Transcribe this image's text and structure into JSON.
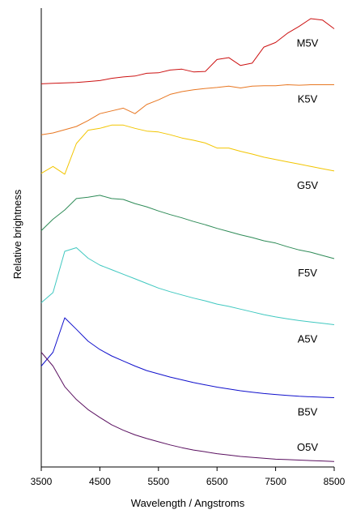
{
  "chart_data": {
    "type": "line",
    "title": "",
    "xlabel": "Wavelength / Angstroms",
    "ylabel": "Relative brightness",
    "xlim": [
      3500,
      8500
    ],
    "xticks": [
      3500,
      4500,
      5500,
      6500,
      7500,
      8500
    ],
    "ylim": [
      0,
      100
    ],
    "grid": false,
    "legend": "none",
    "series": [
      {
        "name": "M5V",
        "color": "#cc1111",
        "x": [
          3500,
          3700,
          3900,
          4100,
          4300,
          4500,
          4700,
          4900,
          5100,
          5300,
          5500,
          5700,
          5900,
          6100,
          6300,
          6500,
          6700,
          6900,
          7100,
          7300,
          7500,
          7700,
          7900,
          8100,
          8300,
          8500
        ],
        "y": [
          83.5,
          83.6,
          83.7,
          83.8,
          84.0,
          84.2,
          84.7,
          85.0,
          85.2,
          85.8,
          85.9,
          86.5,
          86.7,
          86.1,
          86.2,
          88.8,
          89.2,
          87.5,
          88.0,
          91.5,
          92.5,
          94.5,
          96.0,
          97.7,
          97.4,
          95.5
        ]
      },
      {
        "name": "K5V",
        "color": "#e87722",
        "x": [
          3500,
          3700,
          3900,
          4100,
          4300,
          4500,
          4700,
          4900,
          5100,
          5300,
          5500,
          5700,
          5900,
          6100,
          6300,
          6500,
          6700,
          6900,
          7100,
          7300,
          7500,
          7700,
          7900,
          8100,
          8300,
          8500
        ],
        "y": [
          72.4,
          72.8,
          73.5,
          74.2,
          75.5,
          77.0,
          77.6,
          78.2,
          77.0,
          79.0,
          80.0,
          81.2,
          81.8,
          82.2,
          82.5,
          82.7,
          83.0,
          82.6,
          83.0,
          83.1,
          83.1,
          83.3,
          83.2,
          83.3,
          83.3,
          83.3
        ]
      },
      {
        "name": "G5V",
        "color": "#f2c500",
        "x": [
          3500,
          3700,
          3900,
          4100,
          4300,
          4500,
          4700,
          4900,
          5100,
          5300,
          5500,
          5700,
          5900,
          6100,
          6300,
          6500,
          6700,
          6900,
          7100,
          7300,
          7500,
          7700,
          7900,
          8100,
          8300,
          8500
        ],
        "y": [
          64.0,
          65.5,
          63.8,
          70.5,
          73.4,
          73.8,
          74.5,
          74.5,
          73.8,
          73.2,
          73.0,
          72.4,
          71.7,
          71.2,
          70.6,
          69.5,
          69.5,
          68.8,
          68.2,
          67.5,
          67.0,
          66.5,
          66.0,
          65.5,
          65.0,
          64.5
        ]
      },
      {
        "name": "F5V",
        "color": "#2e8b57",
        "x": [
          3500,
          3700,
          3900,
          4100,
          4300,
          4500,
          4700,
          4900,
          5100,
          5300,
          5500,
          5700,
          5900,
          6100,
          6300,
          6500,
          6700,
          6900,
          7100,
          7300,
          7500,
          7700,
          7900,
          8100,
          8300,
          8500
        ],
        "y": [
          51.5,
          54.0,
          56.0,
          58.5,
          58.8,
          59.2,
          58.5,
          58.3,
          57.4,
          56.7,
          55.8,
          55.0,
          54.3,
          53.5,
          52.8,
          52.0,
          51.3,
          50.6,
          50.0,
          49.3,
          48.8,
          48.0,
          47.3,
          46.8,
          46.1,
          45.4
        ]
      },
      {
        "name": "A5V",
        "color": "#40c8c0",
        "x": [
          3500,
          3700,
          3900,
          4100,
          4300,
          4500,
          4700,
          4900,
          5100,
          5300,
          5500,
          5700,
          5900,
          6100,
          6300,
          6500,
          6700,
          6900,
          7100,
          7300,
          7500,
          7700,
          7900,
          8100,
          8300,
          8500
        ],
        "y": [
          35.8,
          38.0,
          47.0,
          47.8,
          45.5,
          44.0,
          43.0,
          42.0,
          41.0,
          40.0,
          39.0,
          38.2,
          37.5,
          36.8,
          36.2,
          35.5,
          35.0,
          34.4,
          33.8,
          33.2,
          32.7,
          32.3,
          31.9,
          31.6,
          31.3,
          31.0
        ]
      },
      {
        "name": "B5V",
        "color": "#1010cc",
        "x": [
          3500,
          3700,
          3900,
          4100,
          4300,
          4500,
          4700,
          4900,
          5100,
          5300,
          5500,
          5700,
          5900,
          6100,
          6300,
          6500,
          6700,
          6900,
          7100,
          7300,
          7500,
          7700,
          7900,
          8100,
          8300,
          8500
        ],
        "y": [
          22.0,
          25.0,
          32.5,
          30.0,
          27.4,
          25.6,
          24.2,
          23.1,
          22.0,
          21.0,
          20.3,
          19.6,
          19.0,
          18.4,
          17.9,
          17.4,
          17.0,
          16.6,
          16.3,
          16.0,
          15.8,
          15.6,
          15.4,
          15.3,
          15.2,
          15.1
        ]
      },
      {
        "name": "O5V",
        "color": "#5a1060",
        "x": [
          3500,
          3700,
          3900,
          4100,
          4300,
          4500,
          4700,
          4900,
          5100,
          5300,
          5500,
          5700,
          5900,
          6100,
          6300,
          6500,
          6700,
          6900,
          7100,
          7300,
          7500,
          7700,
          7900,
          8100,
          8300,
          8500
        ],
        "y": [
          25.0,
          22.0,
          17.5,
          14.7,
          12.5,
          10.8,
          9.2,
          8.0,
          7.0,
          6.2,
          5.5,
          4.8,
          4.2,
          3.7,
          3.3,
          2.9,
          2.6,
          2.3,
          2.1,
          1.9,
          1.7,
          1.6,
          1.5,
          1.4,
          1.3,
          1.2
        ]
      }
    ]
  }
}
